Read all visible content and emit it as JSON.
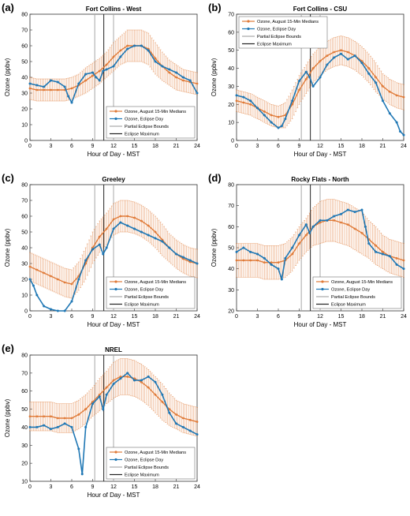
{
  "colors": {
    "median": "#E07B39",
    "error": "#E07B39",
    "eclipse": "#1F77B4",
    "partial": "#A8A8A8",
    "maximum": "#222222"
  },
  "legend_labels": {
    "median": "Ozone, August 15-Min Medians",
    "eclipse": "Ozone, Eclipse Day",
    "partial": "Partial Eclipse Bounds",
    "maximum": "Eclipse Maximum"
  },
  "chart_data": [
    {
      "type": "line",
      "panel_label": "(a)",
      "title": "Fort Collins - West",
      "xlabel": "Hour of Day - MST",
      "ylabel": "Ozone (ppbv)",
      "xlim": [
        0,
        24
      ],
      "ylim": [
        0,
        80
      ],
      "xticks": [
        0,
        3,
        6,
        9,
        12,
        15,
        18,
        21,
        24
      ],
      "yticks": [
        0,
        10,
        20,
        30,
        40,
        50,
        60,
        70,
        80
      ],
      "legend_position": "bottom-right",
      "eclipse_lines": {
        "partial_start": 9.3,
        "maximum": 10.6,
        "partial_end": 12.0
      },
      "series": [
        {
          "name": "Ozone, August 15-Min Medians",
          "x": [
            0,
            1,
            2,
            3,
            4,
            5,
            6,
            7,
            8,
            9,
            10,
            11,
            12,
            13,
            14,
            15,
            16,
            17,
            18,
            19,
            20,
            21,
            22,
            23,
            24
          ],
          "values": [
            33,
            32,
            32,
            32,
            32,
            32,
            33,
            35,
            38,
            41,
            44,
            48,
            53,
            57,
            60,
            60,
            60,
            58,
            52,
            47,
            43,
            40,
            38,
            37,
            36
          ],
          "error": [
            7,
            7,
            7,
            7,
            7,
            7,
            7,
            7,
            8,
            8,
            8,
            8,
            9,
            9,
            10,
            10,
            10,
            10,
            10,
            9,
            8,
            8,
            7,
            7,
            7
          ]
        },
        {
          "name": "Ozone, Eclipse Day",
          "x": [
            0,
            1,
            2,
            3,
            4,
            5,
            5.5,
            6,
            7,
            8,
            9,
            9.5,
            10,
            10.5,
            11,
            12,
            13,
            14,
            15,
            16,
            17,
            18,
            19,
            20,
            21,
            22,
            23,
            24
          ],
          "values": [
            36,
            35,
            34,
            38,
            37,
            34,
            28,
            24,
            36,
            42,
            43,
            40,
            38,
            44,
            45,
            47,
            53,
            58,
            60,
            60,
            57,
            50,
            47,
            45,
            43,
            40,
            38,
            30
          ]
        }
      ]
    },
    {
      "type": "line",
      "panel_label": "(b)",
      "title": "Fort Collins - CSU",
      "xlabel": "Hour of Day - MST",
      "ylabel": "Ozone (ppbv)",
      "xlim": [
        0,
        24
      ],
      "ylim": [
        0,
        70
      ],
      "xticks": [
        0,
        3,
        6,
        9,
        12,
        15,
        18,
        21,
        24
      ],
      "yticks": [
        0,
        10,
        20,
        30,
        40,
        50,
        60,
        70
      ],
      "legend_position": "top-left",
      "eclipse_lines": {
        "partial_start": 9.3,
        "maximum": 10.6,
        "partial_end": 12.0
      },
      "series": [
        {
          "name": "Ozone, August 15-Min Medians",
          "x": [
            0,
            1,
            2,
            3,
            4,
            5,
            6,
            7,
            8,
            9,
            10,
            11,
            12,
            13,
            14,
            15,
            16,
            17,
            18,
            19,
            20,
            21,
            22,
            23,
            24
          ],
          "values": [
            22,
            21,
            20,
            18,
            16,
            14,
            13,
            14,
            20,
            28,
            34,
            40,
            44,
            47,
            49,
            50,
            49,
            47,
            44,
            40,
            35,
            30,
            27,
            25,
            24
          ],
          "error": [
            6,
            6,
            6,
            6,
            6,
            6,
            6,
            7,
            8,
            8,
            8,
            8,
            8,
            8,
            8,
            8,
            8,
            8,
            8,
            8,
            8,
            7,
            7,
            7,
            7
          ]
        },
        {
          "name": "Ozone, Eclipse Day",
          "x": [
            0,
            1,
            2,
            3,
            4,
            5,
            6,
            6.5,
            7,
            8,
            9,
            10,
            10.5,
            11,
            12,
            13,
            14,
            15,
            16,
            17,
            18,
            19,
            20,
            21,
            22,
            23,
            23.5,
            24
          ],
          "values": [
            25,
            24,
            22,
            18,
            14,
            10,
            7,
            8,
            12,
            22,
            33,
            38,
            35,
            30,
            35,
            42,
            46,
            48,
            45,
            47,
            43,
            37,
            32,
            22,
            15,
            10,
            5,
            3
          ]
        }
      ]
    },
    {
      "type": "line",
      "panel_label": "(c)",
      "title": "Greeley",
      "xlabel": "Hour of Day - MST",
      "ylabel": "Ozone (ppbv)",
      "xlim": [
        0,
        24
      ],
      "ylim": [
        0,
        80
      ],
      "xticks": [
        0,
        3,
        6,
        9,
        12,
        15,
        18,
        21,
        24
      ],
      "yticks": [
        0,
        10,
        20,
        30,
        40,
        50,
        60,
        70,
        80
      ],
      "legend_position": "bottom-right",
      "eclipse_lines": {
        "partial_start": 9.3,
        "maximum": 10.6,
        "partial_end": 12.0
      },
      "series": [
        {
          "name": "Ozone, August 15-Min Medians",
          "x": [
            0,
            1,
            2,
            3,
            4,
            5,
            6,
            7,
            8,
            9,
            10,
            11,
            12,
            13,
            14,
            15,
            16,
            17,
            18,
            19,
            20,
            21,
            22,
            23,
            24
          ],
          "values": [
            28,
            26,
            24,
            22,
            20,
            18,
            17,
            22,
            30,
            40,
            47,
            52,
            58,
            60,
            60,
            59,
            57,
            54,
            50,
            45,
            40,
            36,
            33,
            31,
            30
          ],
          "error": [
            9,
            9,
            9,
            9,
            9,
            9,
            9,
            9,
            10,
            10,
            10,
            10,
            10,
            10,
            10,
            10,
            10,
            10,
            10,
            10,
            9,
            9,
            9,
            9,
            9
          ]
        },
        {
          "name": "Ozone, Eclipse Day",
          "x": [
            0,
            0.5,
            1,
            2,
            3,
            4,
            5,
            6,
            7,
            8,
            9,
            10,
            10.5,
            11,
            12,
            13,
            14,
            15,
            16,
            17,
            18,
            19,
            20,
            21,
            22,
            23,
            24
          ],
          "values": [
            20,
            16,
            10,
            3,
            1,
            0,
            0,
            6,
            20,
            32,
            39,
            42,
            36,
            40,
            52,
            56,
            54,
            52,
            50,
            48,
            46,
            44,
            40,
            36,
            34,
            32,
            30
          ]
        }
      ]
    },
    {
      "type": "line",
      "panel_label": "(d)",
      "title": "Rocky Flats - North",
      "xlabel": "Hour of Day - MST",
      "ylabel": "Ozone (ppbv)",
      "xlim": [
        0,
        24
      ],
      "ylim": [
        20,
        80
      ],
      "xticks": [
        0,
        3,
        6,
        9,
        12,
        15,
        18,
        21,
        24
      ],
      "yticks": [
        20,
        30,
        40,
        50,
        60,
        70,
        80
      ],
      "legend_position": "bottom-right",
      "eclipse_lines": {
        "partial_start": 9.3,
        "maximum": 10.6,
        "partial_end": 12.0
      },
      "series": [
        {
          "name": "Ozone, August 15-Min Medians",
          "x": [
            0,
            1,
            2,
            3,
            4,
            5,
            6,
            7,
            8,
            9,
            10,
            11,
            12,
            13,
            14,
            15,
            16,
            17,
            18,
            19,
            20,
            21,
            22,
            23,
            24
          ],
          "values": [
            44,
            44,
            44,
            44,
            43,
            43,
            43,
            44,
            47,
            52,
            56,
            60,
            62,
            63,
            63,
            62,
            61,
            59,
            57,
            54,
            51,
            48,
            46,
            45,
            44
          ],
          "error": [
            8,
            8,
            8,
            8,
            8,
            8,
            8,
            8,
            8,
            8,
            8,
            9,
            10,
            10,
            10,
            10,
            10,
            10,
            10,
            9,
            9,
            8,
            8,
            8,
            8
          ]
        },
        {
          "name": "Ozone, Eclipse Day",
          "x": [
            0,
            1,
            2,
            3,
            4,
            5,
            6,
            6.5,
            7,
            8,
            9,
            10,
            10.5,
            11,
            12,
            13,
            14,
            15,
            16,
            17,
            18,
            18.5,
            19,
            20,
            21,
            22,
            23,
            24
          ],
          "values": [
            48,
            50,
            48,
            47,
            45,
            42,
            40,
            35,
            45,
            50,
            56,
            61,
            57,
            60,
            63,
            63,
            65,
            66,
            68,
            67,
            68,
            60,
            52,
            48,
            47,
            46,
            42,
            40
          ]
        }
      ]
    },
    {
      "type": "line",
      "panel_label": "(e)",
      "title": "NREL",
      "xlabel": "Hour of Day - MST",
      "ylabel": "Ozone (ppbv)",
      "xlim": [
        0,
        24
      ],
      "ylim": [
        10,
        80
      ],
      "xticks": [
        0,
        3,
        6,
        9,
        12,
        15,
        18,
        21,
        24
      ],
      "yticks": [
        10,
        20,
        30,
        40,
        50,
        60,
        70,
        80
      ],
      "legend_position": "bottom-right",
      "eclipse_lines": {
        "partial_start": 9.3,
        "maximum": 10.6,
        "partial_end": 12.0
      },
      "series": [
        {
          "name": "Ozone, August 15-Min Medians",
          "x": [
            0,
            1,
            2,
            3,
            4,
            5,
            6,
            7,
            8,
            9,
            10,
            11,
            12,
            13,
            14,
            15,
            16,
            17,
            18,
            19,
            20,
            21,
            22,
            23,
            24
          ],
          "values": [
            46,
            46,
            46,
            46,
            45,
            45,
            45,
            47,
            50,
            54,
            58,
            62,
            66,
            68,
            68,
            67,
            65,
            62,
            58,
            54,
            50,
            47,
            45,
            44,
            43
          ],
          "error": [
            8,
            8,
            8,
            8,
            8,
            8,
            8,
            8,
            8,
            8,
            9,
            9,
            10,
            10,
            10,
            10,
            10,
            10,
            10,
            10,
            9,
            8,
            8,
            8,
            8
          ]
        },
        {
          "name": "Ozone, Eclipse Day",
          "x": [
            0,
            1,
            2,
            3,
            4,
            5,
            6,
            7,
            7.5,
            8,
            9,
            10,
            10.5,
            11,
            12,
            13,
            14,
            15,
            16,
            17,
            18,
            19,
            20,
            21,
            22,
            23,
            24
          ],
          "values": [
            40,
            40,
            41,
            39,
            40,
            42,
            40,
            28,
            14,
            40,
            53,
            57,
            50,
            58,
            64,
            67,
            70,
            66,
            66,
            68,
            65,
            58,
            48,
            42,
            40,
            38,
            36
          ]
        }
      ]
    }
  ]
}
